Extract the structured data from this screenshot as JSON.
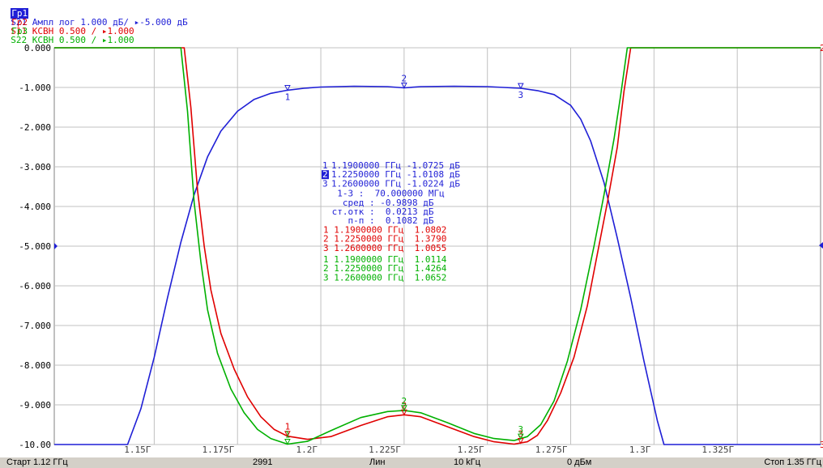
{
  "colors": {
    "trace1": "#1f1fd6",
    "trace2": "#e00000",
    "trace3": "#00b000",
    "grid": "#c0c0c0",
    "axis_text": "#000000",
    "active_bg": "#1f1fd6"
  },
  "header": [
    {
      "label": "Гр1",
      "text": "S21 Ампл лог 1.000 дБ/ ▸-5.000 дБ",
      "active": true
    },
    {
      "label": "Гр2",
      "text": "S11 КСВН 0.500 / ▸1.000",
      "active": false
    },
    {
      "label": "Гр3",
      "text": "S22 КСВН 0.500 / ▸1.000",
      "active": false
    }
  ],
  "markers_table": {
    "trace1": [
      {
        "num": "1",
        "text": "1.1900000 ГГц -1.0725 дБ",
        "active": false
      },
      {
        "num": "2",
        "text": "1.2250000 ГГц -1.0108 дБ",
        "active": true
      },
      {
        "num": "3",
        "text": "1.2600000 ГГц -1.0224 дБ",
        "active": false
      }
    ],
    "stats": [
      "  1-3 :  70.000000 МГц",
      "   сред : -0.9898 дБ",
      " ст.отк :  0.0213 дБ",
      "    п-п :  0.1082 дБ"
    ],
    "trace2": [
      "1 1.1900000 ГГц  1.0802",
      "2 1.2250000 ГГц  1.3790",
      "3 1.2600000 ГГц  1.0055"
    ],
    "trace3": [
      "1 1.1900000 ГГц  1.0114",
      "2 1.2250000 ГГц  1.4264",
      "3 1.2600000 ГГц  1.0652"
    ]
  },
  "status": {
    "start": "Старт 1.12 ГГц",
    "points": "2991",
    "sweep": "Лин",
    "ifbw": "10 kГц",
    "power": "0 дБм",
    "stop": "Стоп 1.35 ГГц"
  },
  "chart_data": {
    "type": "line",
    "xlim": [
      1.12,
      1.35
    ],
    "ylim": [
      -10,
      0
    ],
    "grid": true,
    "yticks": [
      0,
      -1,
      -2,
      -3,
      -4,
      -5,
      -6,
      -7,
      -8,
      -9,
      -10
    ],
    "ytick_labels": [
      "0.000",
      "-1.000",
      "-2.000",
      "-3.000",
      "-4.000",
      "-5.000",
      "-6.000",
      "-7.000",
      "-8.000",
      "-9.000",
      "-10.00"
    ],
    "xticks": [
      1.15,
      1.175,
      1.2,
      1.225,
      1.25,
      1.275,
      1.3,
      1.325
    ],
    "xtick_labels": [
      "1.15Г",
      "1.175Г",
      "1.2Г",
      "1.225Г",
      "1.25Г",
      "1.275Г",
      "1.3Г",
      "1.325Г"
    ],
    "series": [
      {
        "name": "S21",
        "color": "#1f1fd6",
        "x": [
          1.12,
          1.142,
          1.146,
          1.15,
          1.154,
          1.158,
          1.162,
          1.166,
          1.17,
          1.175,
          1.18,
          1.185,
          1.19,
          1.195,
          1.2,
          1.21,
          1.22,
          1.225,
          1.23,
          1.24,
          1.25,
          1.255,
          1.26,
          1.265,
          1.27,
          1.275,
          1.278,
          1.281,
          1.285,
          1.289,
          1.293,
          1.297,
          1.301,
          1.303,
          1.35
        ],
        "y": [
          -10,
          -10,
          -9.1,
          -7.8,
          -6.3,
          -4.9,
          -3.7,
          -2.75,
          -2.1,
          -1.6,
          -1.3,
          -1.15,
          -1.07,
          -1.02,
          -0.99,
          -0.97,
          -0.98,
          -1.01,
          -0.98,
          -0.97,
          -0.98,
          -1.0,
          -1.02,
          -1.08,
          -1.18,
          -1.45,
          -1.8,
          -2.35,
          -3.4,
          -4.8,
          -6.3,
          -7.9,
          -9.4,
          -10,
          -10
        ]
      },
      {
        "name": "S11",
        "color": "#e00000",
        "x": [
          1.12,
          1.159,
          1.161,
          1.163,
          1.165,
          1.167,
          1.17,
          1.174,
          1.178,
          1.182,
          1.186,
          1.19,
          1.196,
          1.203,
          1.212,
          1.22,
          1.225,
          1.23,
          1.238,
          1.246,
          1.252,
          1.258,
          1.262,
          1.265,
          1.268,
          1.272,
          1.276,
          1.28,
          1.283,
          1.286,
          1.289,
          1.291,
          1.293,
          1.35
        ],
        "y": [
          0,
          0,
          -1.5,
          -3.6,
          -5.0,
          -6.1,
          -7.2,
          -8.1,
          -8.8,
          -9.3,
          -9.62,
          -9.79,
          -9.87,
          -9.8,
          -9.52,
          -9.3,
          -9.25,
          -9.3,
          -9.55,
          -9.8,
          -9.93,
          -9.99,
          -9.93,
          -9.77,
          -9.4,
          -8.7,
          -7.8,
          -6.5,
          -5.2,
          -3.9,
          -2.5,
          -1.1,
          0,
          0
        ]
      },
      {
        "name": "S22",
        "color": "#00b000",
        "x": [
          1.12,
          1.158,
          1.16,
          1.162,
          1.164,
          1.166,
          1.169,
          1.173,
          1.177,
          1.181,
          1.185,
          1.19,
          1.196,
          1.203,
          1.212,
          1.22,
          1.225,
          1.23,
          1.238,
          1.246,
          1.252,
          1.258,
          1.262,
          1.266,
          1.27,
          1.274,
          1.278,
          1.282,
          1.285,
          1.288,
          1.29,
          1.292,
          1.35
        ],
        "y": [
          0,
          0,
          -1.6,
          -3.9,
          -5.4,
          -6.6,
          -7.7,
          -8.6,
          -9.2,
          -9.62,
          -9.85,
          -9.99,
          -9.92,
          -9.65,
          -9.32,
          -9.17,
          -9.14,
          -9.2,
          -9.45,
          -9.72,
          -9.85,
          -9.9,
          -9.8,
          -9.5,
          -8.9,
          -7.9,
          -6.6,
          -5.0,
          -3.7,
          -2.3,
          -1.2,
          0,
          0
        ]
      }
    ],
    "markers": [
      {
        "trace": "S21",
        "label": "1",
        "x": 1.19,
        "y": -1.0725
      },
      {
        "trace": "S21",
        "label": "2",
        "x": 1.225,
        "y": -1.0108
      },
      {
        "trace": "S21",
        "label": "3",
        "x": 1.26,
        "y": -1.0224
      },
      {
        "trace": "S11",
        "label": "1",
        "x": 1.19,
        "y": -9.79
      },
      {
        "trace": "S11",
        "label": "2",
        "x": 1.225,
        "y": -9.25
      },
      {
        "trace": "S11",
        "label": "3",
        "x": 1.26,
        "y": -9.97
      },
      {
        "trace": "S22",
        "label": "1",
        "x": 1.19,
        "y": -9.99
      },
      {
        "trace": "S22",
        "label": "2",
        "x": 1.225,
        "y": -9.14
      },
      {
        "trace": "S22",
        "label": "3",
        "x": 1.26,
        "y": -9.86
      }
    ],
    "right_edge_labels": [
      "2",
      "3"
    ]
  }
}
